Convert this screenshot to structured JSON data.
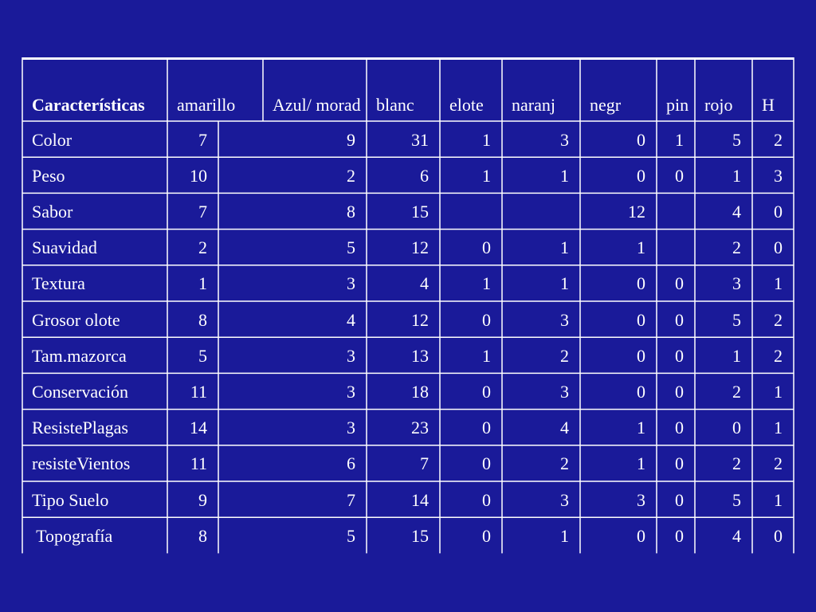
{
  "table": {
    "headers": [
      "Características",
      "amarillo",
      "Azul/ morad",
      "blanc",
      "elote",
      "naranj",
      "negr",
      "pin",
      "rojo",
      "H"
    ],
    "rows": [
      [
        "Color",
        "7",
        "9",
        "31",
        "1",
        "3",
        "0",
        "1",
        "5",
        "2"
      ],
      [
        "Peso",
        "10",
        "2",
        "6",
        "1",
        "1",
        "0",
        "0",
        "1",
        "3"
      ],
      [
        "Sabor",
        "7",
        "8",
        "15",
        "",
        "",
        "12",
        "",
        "4",
        "0"
      ],
      [
        "Suavidad",
        "2",
        "5",
        "12",
        "0",
        "1",
        "1",
        "",
        "2",
        "0"
      ],
      [
        "Textura",
        "1",
        "3",
        "4",
        "1",
        "1",
        "0",
        "0",
        "3",
        "1"
      ],
      [
        "Grosor olote",
        "8",
        "4",
        "12",
        "0",
        "3",
        "0",
        "0",
        "5",
        "2"
      ],
      [
        "Tam.mazorca",
        "5",
        "3",
        "13",
        "1",
        "2",
        "0",
        "0",
        "1",
        "2"
      ],
      [
        "Conservación",
        "11",
        "3",
        "18",
        "0",
        "3",
        "0",
        "0",
        "2",
        "1"
      ],
      [
        "ResistePlagas",
        "14",
        "3",
        "23",
        "0",
        "4",
        "1",
        "0",
        "0",
        "1"
      ],
      [
        "resisteVientos",
        "11",
        "6",
        "7",
        "0",
        "2",
        "1",
        "0",
        "2",
        "2"
      ],
      [
        "Tipo Suelo",
        "9",
        "7",
        "14",
        "0",
        "3",
        "3",
        "0",
        "5",
        "1"
      ],
      [
        " Topografía",
        "8",
        "5",
        "15",
        "0",
        "1",
        "0",
        "0",
        "4",
        "0"
      ]
    ]
  },
  "colors": {
    "background": "#1a1a99",
    "text": "#ffffff",
    "rules": "#ffffff"
  }
}
